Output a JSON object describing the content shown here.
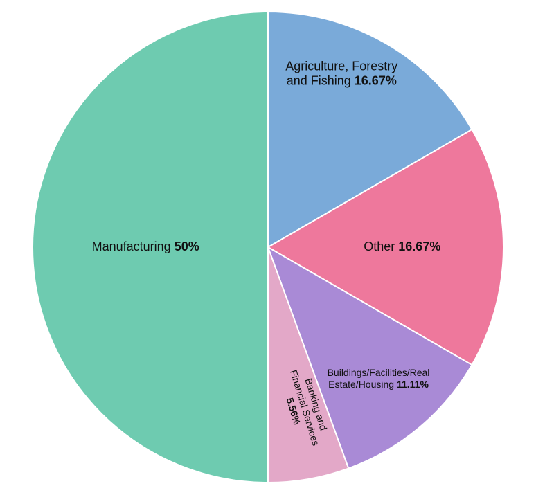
{
  "chart_data": {
    "type": "pie",
    "categories": [
      "Agriculture, Forestry and Fishing",
      "Other",
      "Buildings/Facilities/Real Estate/Housing",
      "Banking and Financial Services",
      "Manufacturing"
    ],
    "values": [
      16.67,
      16.67,
      11.11,
      5.56,
      50
    ],
    "value_labels": [
      "16.67%",
      "16.67%",
      "11.11%",
      "5.56%",
      "50%"
    ],
    "colors": [
      "#7aaad9",
      "#ee789c",
      "#a98ad6",
      "#e3a8c8",
      "#6ecbb0"
    ]
  }
}
